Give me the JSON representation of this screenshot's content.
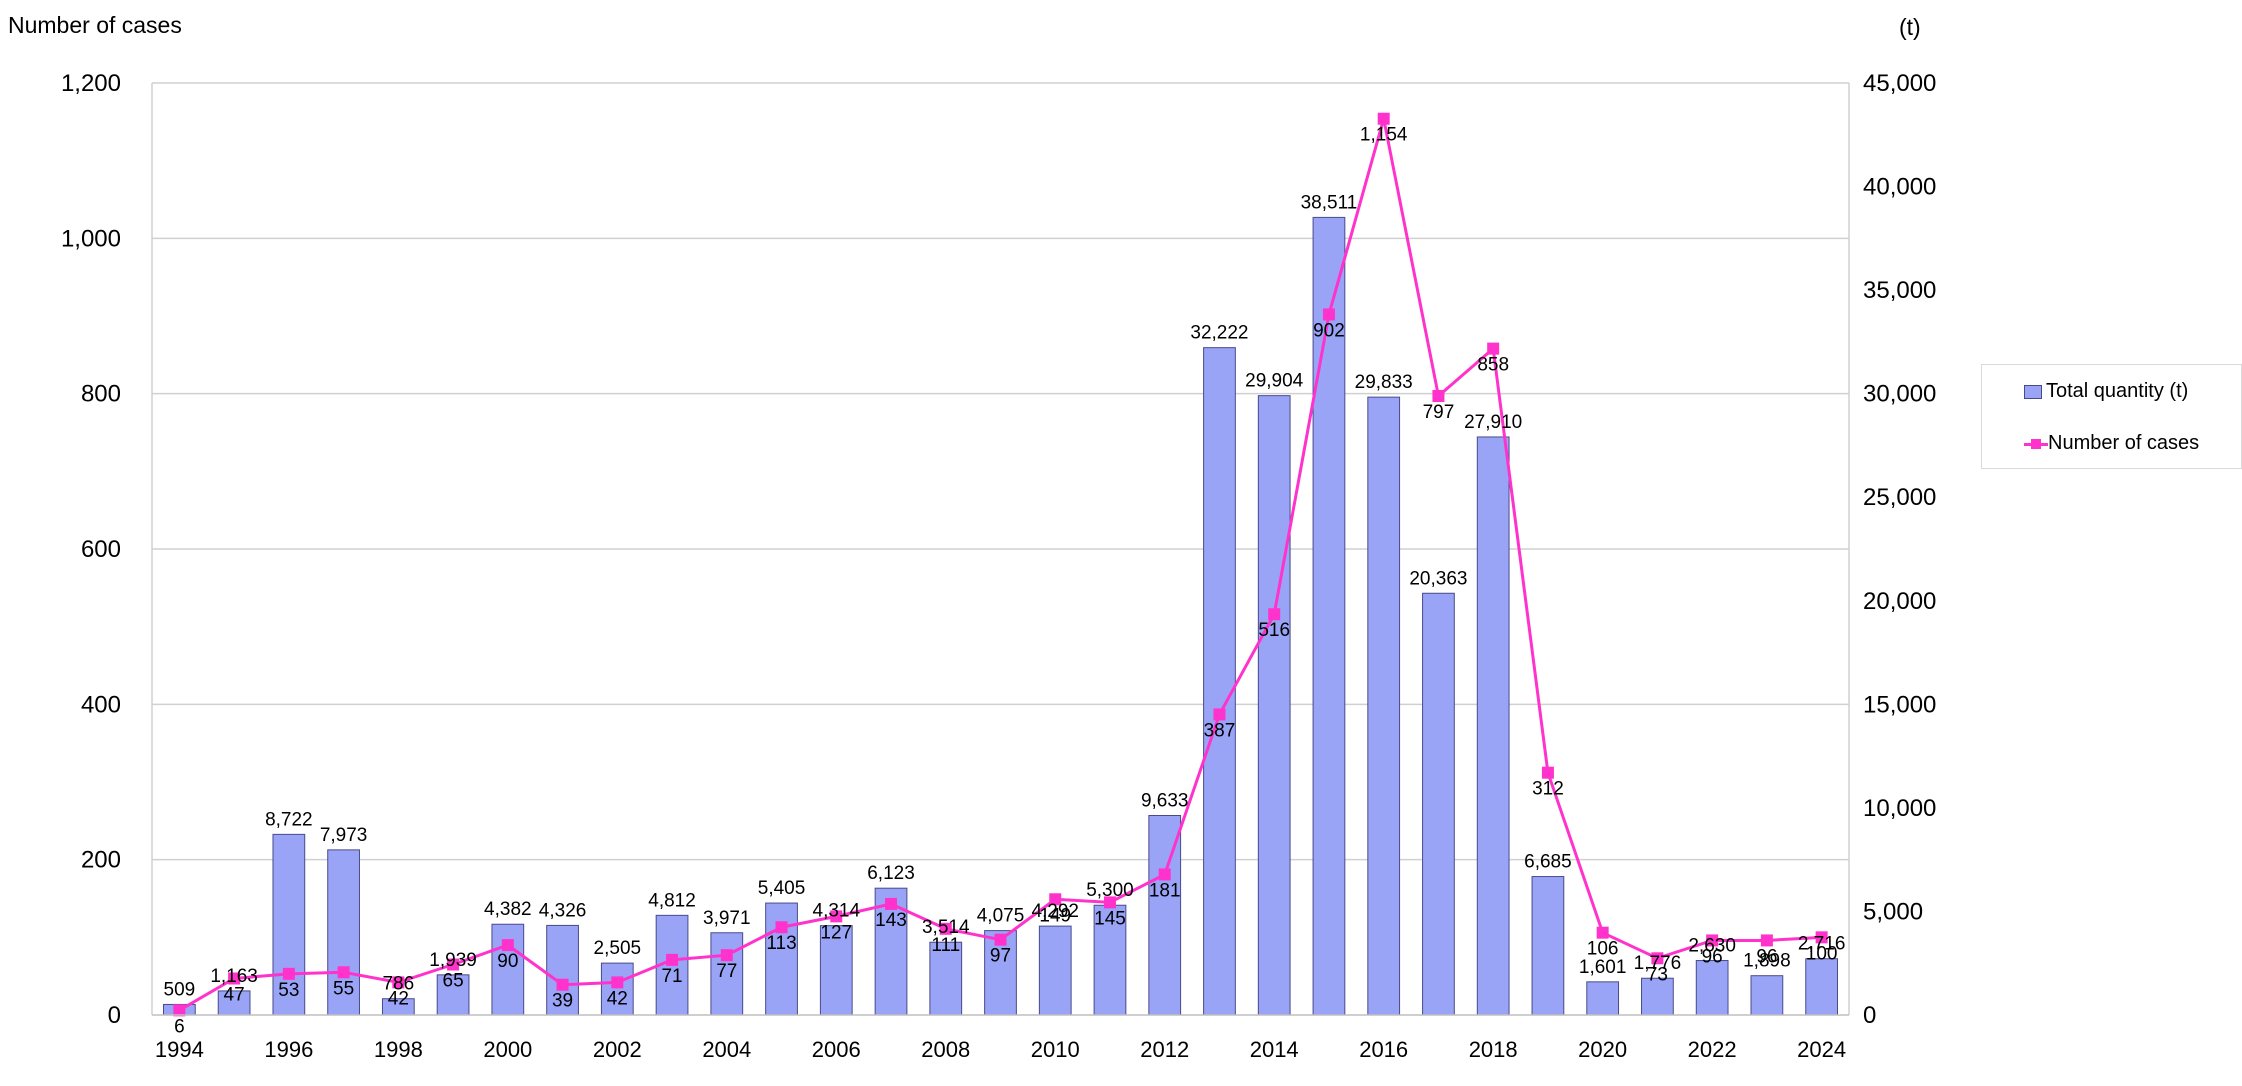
{
  "chart_data": {
    "type": "bar+line",
    "title": "",
    "ylabel_left": "Number of cases",
    "ylabel_right": "(t)",
    "ylim_left": [
      0,
      1200
    ],
    "ylim_right": [
      0,
      45000
    ],
    "yticks_left": [
      "0",
      "200",
      "400",
      "600",
      "800",
      "1,000",
      "1,200"
    ],
    "yticks_right": [
      "0",
      "5,000",
      "10,000",
      "15,000",
      "20,000",
      "25,000",
      "30,000",
      "35,000",
      "40,000",
      "45,000"
    ],
    "grid": true,
    "legend_position": "right",
    "categories": [
      "1994",
      "1995",
      "1996",
      "1997",
      "1998",
      "1999",
      "2000",
      "2001",
      "2002",
      "2003",
      "2004",
      "2005",
      "2006",
      "2007",
      "2008",
      "2009",
      "2010",
      "2011",
      "2012",
      "2013",
      "2014",
      "2015",
      "2016",
      "2017",
      "2018",
      "2019",
      "2020",
      "2021",
      "2022",
      "2023",
      "2024"
    ],
    "x_tick_labels": [
      "1994",
      "",
      "1996",
      "",
      "1998",
      "",
      "2000",
      "",
      "2002",
      "",
      "2004",
      "",
      "2006",
      "",
      "2008",
      "",
      "2010",
      "",
      "2012",
      "",
      "2014",
      "",
      "2016",
      "",
      "2018",
      "",
      "2020",
      "",
      "2022",
      "",
      "2024"
    ],
    "series": [
      {
        "name": "Total quantity (t)",
        "type": "bar",
        "axis": "right",
        "color": "#99a4f7",
        "values": [
          509,
          1163,
          8722,
          7973,
          786,
          1939,
          4382,
          4326,
          2505,
          4812,
          3971,
          5405,
          4314,
          6123,
          3514,
          4075,
          4292,
          5300,
          9633,
          32222,
          29904,
          38511,
          29833,
          20363,
          27910,
          6685,
          1601,
          1776,
          2630,
          1898,
          2716
        ],
        "labels": [
          "509",
          "1,163",
          "8,722",
          "7,973",
          "786",
          "1,939",
          "4,382",
          "4,326",
          "2,505",
          "4,812",
          "3,971",
          "5,405",
          "4,314",
          "6,123",
          "3,514",
          "4,075",
          "4,292",
          "5,300",
          "9,633",
          "32,222",
          "29,904",
          "38,511",
          "29,833",
          "20,363",
          "27,910",
          "6,685",
          "1,601",
          "1,776",
          "2,630",
          "1,898",
          "2,716"
        ]
      },
      {
        "name": "Number of cases",
        "type": "line",
        "axis": "left",
        "color": "#ff33cc",
        "values": [
          6,
          47,
          53,
          55,
          42,
          65,
          90,
          39,
          42,
          71,
          77,
          113,
          127,
          143,
          111,
          97,
          149,
          145,
          181,
          387,
          516,
          902,
          1154,
          797,
          858,
          312,
          106,
          73,
          96,
          96,
          100
        ],
        "labels": [
          "6",
          "47",
          "53",
          "55",
          "42",
          "65",
          "90",
          "39",
          "42",
          "71",
          "77",
          "113",
          "127",
          "143",
          "111",
          "97",
          "149",
          "145",
          "181",
          "387",
          "516",
          "902",
          "1,154",
          "797",
          "858",
          "312",
          "106",
          "73",
          "96",
          "96",
          "100"
        ]
      }
    ]
  },
  "legend": {
    "items": [
      "Total quantity (t)",
      "Number of cases"
    ]
  }
}
